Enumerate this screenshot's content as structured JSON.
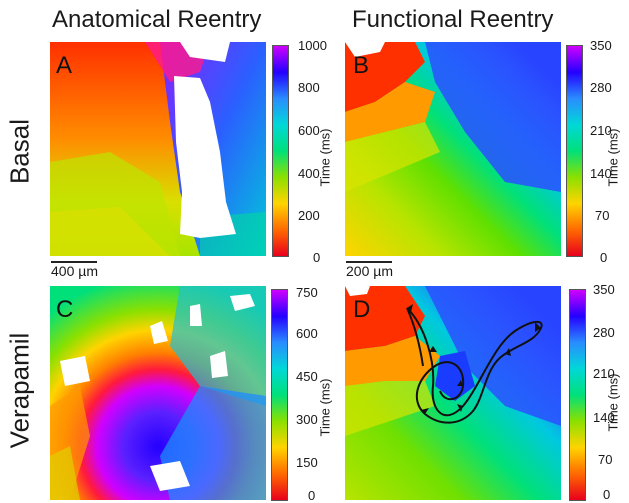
{
  "figure": {
    "column_titles": [
      "Anatomical Reentry",
      "Functional Reentry"
    ],
    "row_labels": [
      "Basal",
      "Verapamil"
    ],
    "panels": [
      {
        "letter": "A",
        "colorbar": {
          "label": "Time (ms)",
          "ticks": [
            "1000",
            "800",
            "600",
            "400",
            "200",
            "0"
          ],
          "max": 1000
        }
      },
      {
        "letter": "B",
        "colorbar": {
          "label": "Time (ms)",
          "ticks": [
            "350",
            "280",
            "210",
            "140",
            "70",
            "0"
          ],
          "max": 350
        }
      },
      {
        "letter": "C",
        "colorbar": {
          "label": "Time (ms)",
          "ticks": [
            "750",
            "600",
            "450",
            "300",
            "150",
            "0"
          ],
          "max": 750
        }
      },
      {
        "letter": "D",
        "colorbar": {
          "label": "Time (ms)",
          "ticks": [
            "350",
            "280",
            "210",
            "140",
            "70",
            "0"
          ],
          "max": 350
        }
      }
    ],
    "scale_bars": [
      "400 µm",
      "200 µm"
    ],
    "colormap": [
      "#e8001c",
      "#ff6a00",
      "#ffd400",
      "#8be000",
      "#00e07a",
      "#00d8d8",
      "#2a8cff",
      "#2400ff",
      "#d000ff"
    ]
  }
}
